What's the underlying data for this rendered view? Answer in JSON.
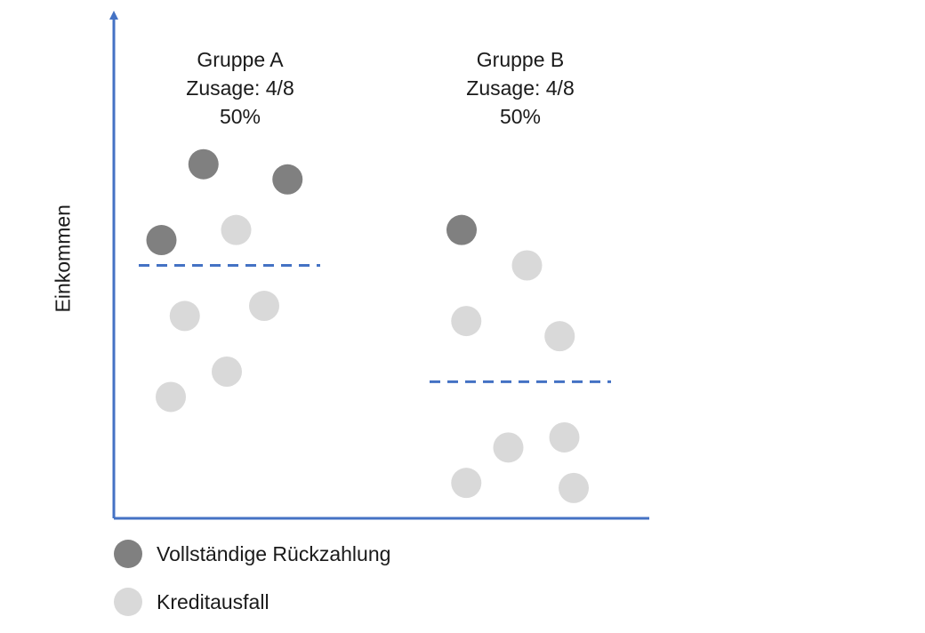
{
  "chart_data": {
    "type": "scatter",
    "ylabel": "Einkommen",
    "xlabel": "",
    "colors": {
      "axis": "#4472c4",
      "repaid": "#808080",
      "default": "#d9d9d9",
      "threshold": "#4472c4"
    },
    "groups": [
      {
        "name": "Gruppe A",
        "line2": "Zusage: 4/8",
        "line3": "50%",
        "threshold": 50,
        "points": [
          {
            "x": 1.5,
            "y": 70,
            "status": "repaid"
          },
          {
            "x": 3.3,
            "y": 67,
            "status": "repaid"
          },
          {
            "x": 0.6,
            "y": 55,
            "status": "repaid"
          },
          {
            "x": 2.2,
            "y": 57,
            "status": "default"
          },
          {
            "x": 1.1,
            "y": 40,
            "status": "default"
          },
          {
            "x": 2.8,
            "y": 42,
            "status": "default"
          },
          {
            "x": 2.0,
            "y": 29,
            "status": "default"
          },
          {
            "x": 0.8,
            "y": 24,
            "status": "default"
          }
        ]
      },
      {
        "name": "Gruppe B",
        "line2": "Zusage: 4/8",
        "line3": "50%",
        "threshold": 27,
        "points": [
          {
            "x": 0.8,
            "y": 57,
            "status": "repaid"
          },
          {
            "x": 2.2,
            "y": 50,
            "status": "default"
          },
          {
            "x": 0.9,
            "y": 39,
            "status": "default"
          },
          {
            "x": 2.9,
            "y": 36,
            "status": "default"
          },
          {
            "x": 1.8,
            "y": 14,
            "status": "default"
          },
          {
            "x": 3.0,
            "y": 16,
            "status": "default"
          },
          {
            "x": 0.9,
            "y": 7,
            "status": "default"
          },
          {
            "x": 3.2,
            "y": 6,
            "status": "default"
          }
        ]
      }
    ],
    "legend": [
      {
        "label": "Vollständige Rückzahlung",
        "status": "repaid"
      },
      {
        "label": "Kreditausfall",
        "status": "default"
      }
    ]
  }
}
